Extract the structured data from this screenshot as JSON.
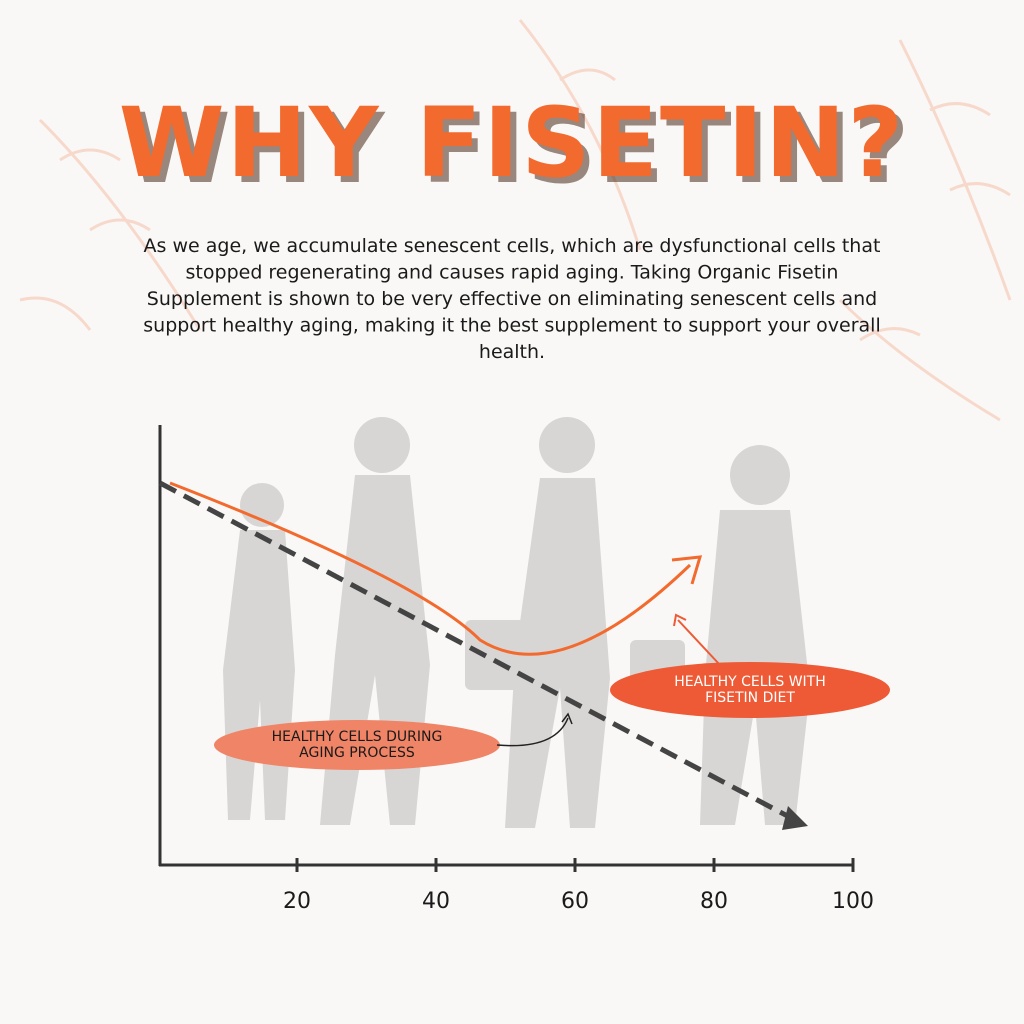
{
  "header": {
    "title": "WHY FISETIN?"
  },
  "body": {
    "lines": [
      "As we age, we accumulate senescent cells, which are dysfunctional cells that",
      "stopped regenerating and causes rapid aging. Taking Organic Fisetin",
      "Supplement is shown to be very effective on eliminating senescent cells and",
      "support healthy aging, making it the best supplement to support your overall",
      "health."
    ]
  },
  "graph": {
    "axis_labels": [
      20,
      40,
      60,
      80,
      100
    ],
    "callouts": [
      {
        "lines": [
          "HEALTHY CELLS DURING",
          "AGING PROCESS"
        ]
      },
      {
        "lines": [
          "HEALTHY CELLS WITH",
          "FISETIN DIET"
        ]
      }
    ]
  }
}
